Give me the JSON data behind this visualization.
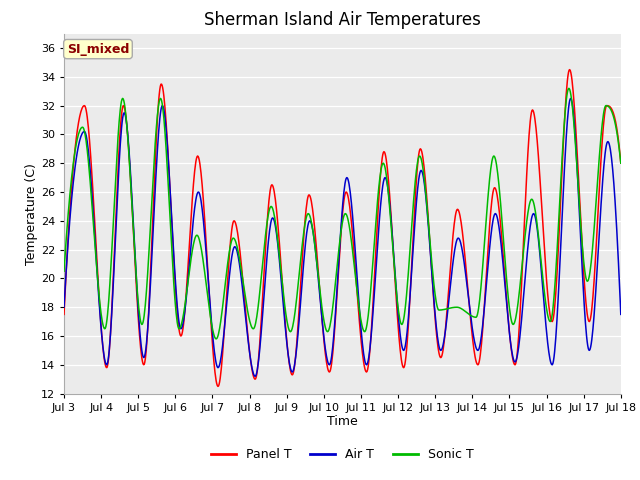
{
  "title": "Sherman Island Air Temperatures",
  "xlabel": "Time",
  "ylabel": "Temperature (C)",
  "ylim": [
    12,
    37
  ],
  "yticks": [
    12,
    14,
    16,
    18,
    20,
    22,
    24,
    26,
    28,
    30,
    32,
    34,
    36
  ],
  "annotation_text": "SI_mixed",
  "annotation_color": "#8B0000",
  "annotation_bg": "#FFFFCC",
  "annotation_edge": "#AAAAAA",
  "line_colors": {
    "panel": "#FF0000",
    "air": "#0000CC",
    "sonic": "#00BB00"
  },
  "legend_labels": [
    "Panel T",
    "Air T",
    "Sonic T"
  ],
  "plot_bg_color": "#EBEBEB",
  "x_labels": [
    "Jul 3",
    "Jul 4",
    "Jul 5",
    "Jul 6",
    "Jul 7",
    "Jul 8",
    "Jul 9",
    "Jul 10",
    "Jul 11",
    "Jul 12",
    "Jul 13",
    "Jul 14",
    "Jul 15",
    "Jul 16",
    "Jul 17",
    "Jul 18"
  ],
  "n_points": 960,
  "title_fontsize": 12,
  "label_fontsize": 9,
  "tick_fontsize": 8
}
